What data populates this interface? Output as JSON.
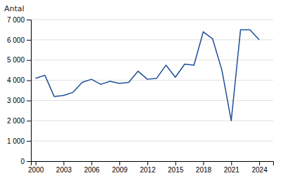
{
  "chart_data": {
    "type": "line",
    "ylabel": "Antal",
    "x": [
      2000,
      2001,
      2002,
      2003,
      2004,
      2005,
      2006,
      2007,
      2008,
      2009,
      2010,
      2011,
      2012,
      2013,
      2014,
      2015,
      2016,
      2017,
      2018,
      2019,
      2020,
      2021,
      2022,
      2023,
      2024
    ],
    "values": [
      4100,
      4250,
      3200,
      3250,
      3400,
      3900,
      4050,
      3800,
      3950,
      3850,
      3900,
      4450,
      4050,
      4100,
      4750,
      4150,
      4800,
      4750,
      6400,
      6050,
      4500,
      2000,
      6500,
      6500,
      6000
    ],
    "color": "#1F4E99",
    "xlim": [
      1999.5,
      2025.5
    ],
    "xticks": [
      2000,
      2003,
      2006,
      2009,
      2012,
      2015,
      2018,
      2021,
      2024
    ],
    "ylim": [
      0,
      7000
    ],
    "yticks": [
      0,
      {
        "value": 1000,
        "label": "1 000"
      },
      {
        "value": 2000,
        "label": "2 000"
      },
      {
        "value": 3000,
        "label": "3 000"
      },
      {
        "value": 4000,
        "label": "4 000"
      },
      {
        "value": 5000,
        "label": "5 000"
      },
      {
        "value": 6000,
        "label": "6 000"
      },
      {
        "value": 7000,
        "label": "7 000"
      }
    ],
    "grid": true
  }
}
